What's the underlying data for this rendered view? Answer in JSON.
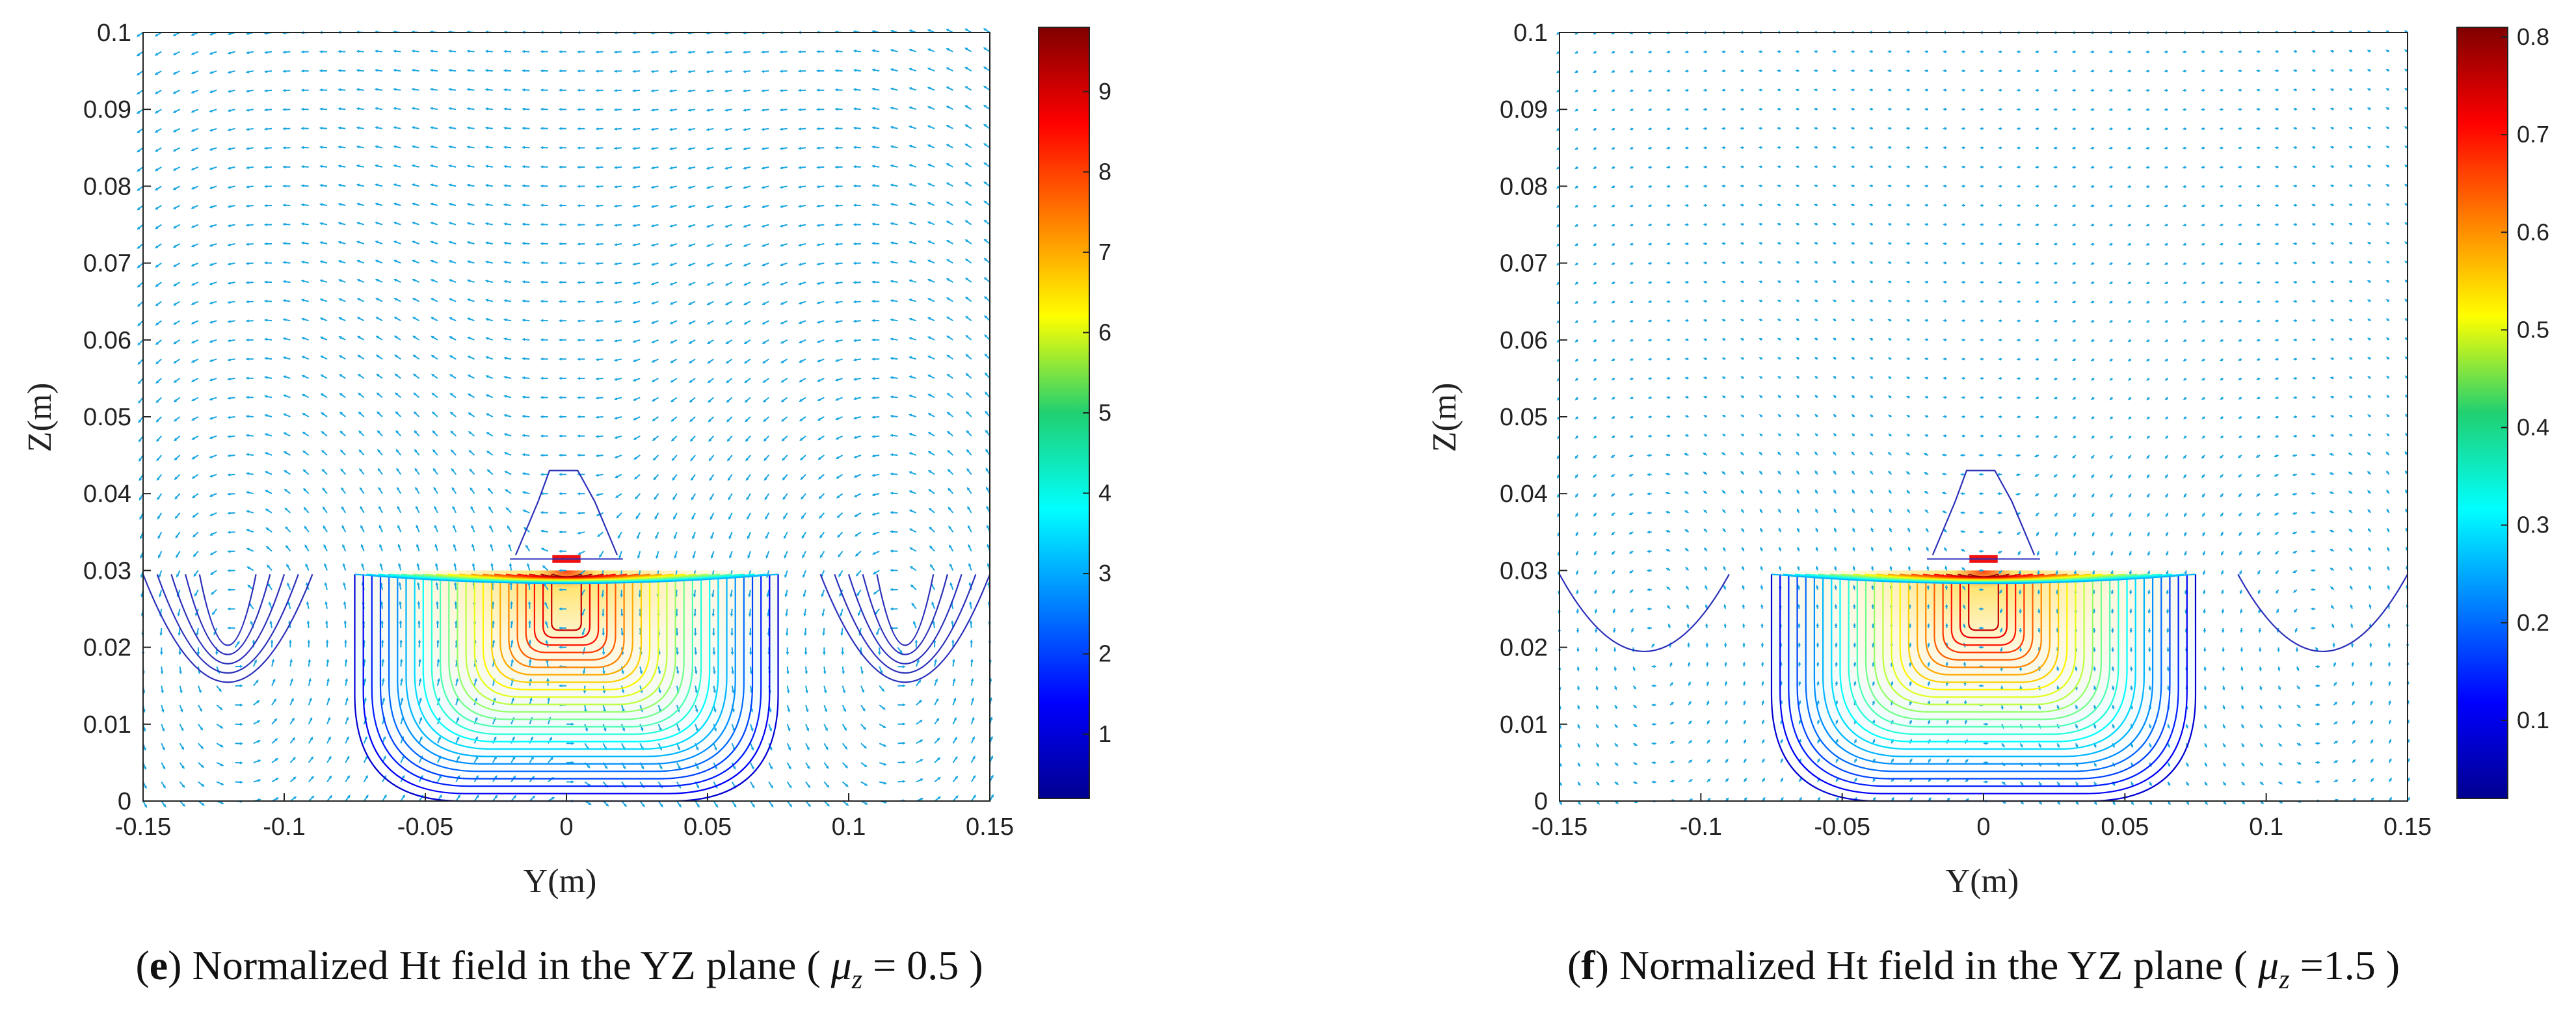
{
  "chart_data": [
    {
      "type": "contour-quiver",
      "id": "e",
      "caption": {
        "label": "e",
        "text": "Normalized Ht field in the YZ plane",
        "param_symbol": "μ",
        "param_sub": "z",
        "param_value": "= 0.5"
      },
      "xlabel": "Y(m)",
      "ylabel": "Z(m)",
      "xlim": [
        -0.15,
        0.15
      ],
      "ylim": [
        0,
        0.1
      ],
      "xticks": [
        "-0.15",
        "-0.1",
        "-0.05",
        "0",
        "0.05",
        "0.1",
        "0.15"
      ],
      "yticks": [
        "0",
        "0.01",
        "0.02",
        "0.03",
        "0.04",
        "0.05",
        "0.06",
        "0.07",
        "0.08",
        "0.09",
        "0.1"
      ],
      "colorbar": {
        "min": 0.2,
        "max": 9.8,
        "ticks": [
          "1",
          "2",
          "3",
          "4",
          "5",
          "6",
          "7",
          "8",
          "9"
        ]
      },
      "source": {
        "y0": 0,
        "z0": 0.031,
        "halfwidth": 0.005
      },
      "side_cells": true,
      "grid_density": "high"
    },
    {
      "type": "contour-quiver",
      "id": "f",
      "caption": {
        "label": "f",
        "text": "Normalized Ht field in the YZ plane",
        "param_symbol": "μ",
        "param_sub": "z",
        "param_value": "=1.5"
      },
      "xlabel": "Y(m)",
      "ylabel": "Z(m)",
      "xlim": [
        -0.15,
        0.15
      ],
      "ylim": [
        0,
        0.1
      ],
      "xticks": [
        "-0.15",
        "-0.1",
        "-0.05",
        "0",
        "0.05",
        "0.1",
        "0.15"
      ],
      "yticks": [
        "0",
        "0.01",
        "0.02",
        "0.03",
        "0.04",
        "0.05",
        "0.06",
        "0.07",
        "0.08",
        "0.09",
        "0.1"
      ],
      "colorbar": {
        "min": 0.02,
        "max": 0.81,
        "ticks": [
          "0.1",
          "0.2",
          "0.3",
          "0.4",
          "0.5",
          "0.6",
          "0.7",
          "0.8"
        ]
      },
      "source": {
        "y0": 0,
        "z0": 0.031,
        "halfwidth": 0.005
      },
      "side_cells": true,
      "grid_density": "low"
    }
  ],
  "colors": {
    "quiver": "#1aa6e0",
    "contour_outer": "#2a2fb8",
    "source": "#ee1111",
    "axis": "#222222"
  }
}
